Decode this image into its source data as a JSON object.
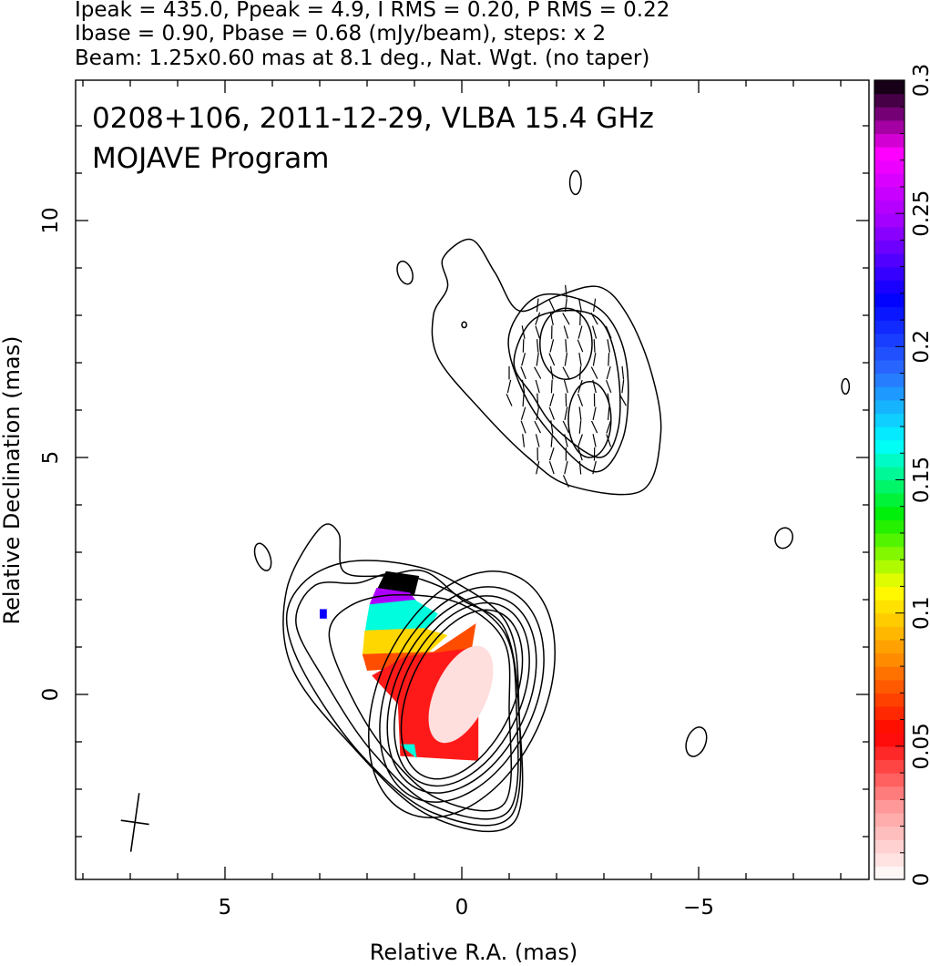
{
  "header": {
    "line1": "Ipeak = 435.0, Ppeak = 4.9, I RMS = 0.20, P RMS = 0.22",
    "line2": "Ibase = 0.90, Pbase = 0.68 (mJy/beam), steps: x 2",
    "line3": "Beam: 1.25x0.60 mas at 8.1 deg., Nat. Wgt. (no taper)"
  },
  "plot": {
    "title1": "0208+106, 2011-12-29, VLBA 15.4 GHz",
    "title2": "MOJAVE Program",
    "xlabel": "Relative R.A. (mas)",
    "ylabel": "Relative Declination (mas)"
  },
  "chart_data": {
    "type": "heatmap",
    "source": "0208+106",
    "date": "2011-12-29",
    "instrument": "VLBA 15.4 GHz",
    "xlim": [
      8.0,
      -8.9
    ],
    "ylim": [
      -3.9,
      13.1
    ],
    "x_ticks": [
      5,
      0,
      -5
    ],
    "x_tick_labels": [
      "5",
      "0",
      "−5"
    ],
    "y_ticks": [
      0,
      5,
      10
    ],
    "y_tick_labels": [
      "0",
      "5",
      "10"
    ],
    "grid": false,
    "colorbar": {
      "range": [
        0,
        0.3
      ],
      "ticks": [
        0,
        0.05,
        0.1,
        0.15,
        0.2,
        0.25,
        0.3
      ],
      "tick_labels": [
        "0",
        "0.05",
        "0.1",
        "0.15",
        "0.2",
        "0.25",
        "0.3"
      ],
      "colors": [
        "#ffffff",
        "#ff9a9a",
        "#ff0000",
        "#ff8800",
        "#ffff00",
        "#00ee00",
        "#00ffff",
        "#2b6bff",
        "#0000ff",
        "#9b00ff",
        "#ff00ff",
        "#000000"
      ]
    },
    "contours": [
      {
        "name": "core",
        "center": [
          0.0,
          0.0
        ],
        "semi_axes": [
          [
            1.1,
            1.9
          ],
          [
            1.25,
            2.05
          ],
          [
            1.4,
            2.2
          ],
          [
            1.55,
            2.4
          ],
          [
            1.75,
            2.75
          ]
        ],
        "pa_deg": 25
      },
      {
        "name": "core-outer-1",
        "points": [
          [
            -0.9,
            -2.3
          ],
          [
            0.5,
            -2.2
          ],
          [
            1.6,
            -1.2
          ],
          [
            2.4,
            0.1
          ],
          [
            2.8,
            1.3
          ],
          [
            2.3,
            1.9
          ],
          [
            1.3,
            2.1
          ],
          [
            0.0,
            1.9
          ],
          [
            -0.9,
            1.1
          ],
          [
            -1.0,
            -0.3
          ]
        ]
      },
      {
        "name": "core-outer-2",
        "points": [
          [
            -1.0,
            -2.45
          ],
          [
            0.6,
            -2.35
          ],
          [
            1.9,
            -1.2
          ],
          [
            2.9,
            0.3
          ],
          [
            3.5,
            1.5
          ],
          [
            3.1,
            2.3
          ],
          [
            2.2,
            2.35
          ],
          [
            1.4,
            2.55
          ],
          [
            0.2,
            2.15
          ],
          [
            -0.9,
            1.3
          ],
          [
            -1.15,
            -0.2
          ]
        ]
      },
      {
        "name": "core-outer-3",
        "points": [
          [
            -1.05,
            -2.55
          ],
          [
            0.6,
            -2.5
          ],
          [
            2.1,
            -1.3
          ],
          [
            3.3,
            0.4
          ],
          [
            3.7,
            1.6
          ],
          [
            3.3,
            2.4
          ],
          [
            2.4,
            2.8
          ],
          [
            1.2,
            2.75
          ],
          [
            0.2,
            2.4
          ],
          [
            -0.95,
            1.5
          ],
          [
            -1.2,
            -0.1
          ]
        ]
      },
      {
        "name": "core-outermost",
        "points": [
          [
            -1.1,
            -2.7
          ],
          [
            0.7,
            -2.55
          ],
          [
            2.4,
            -1.0
          ],
          [
            3.6,
            0.6
          ],
          [
            3.7,
            2.2
          ],
          [
            3.0,
            3.5
          ],
          [
            2.6,
            3.4
          ],
          [
            2.5,
            2.6
          ],
          [
            1.7,
            2.5
          ],
          [
            0.8,
            2.6
          ],
          [
            0.0,
            2.0
          ],
          [
            -0.9,
            1.4
          ],
          [
            -1.2,
            -0.3
          ]
        ]
      },
      {
        "name": "jet-outer",
        "points": [
          [
            -2.3,
            4.4
          ],
          [
            -3.8,
            4.3
          ],
          [
            -4.2,
            5.5
          ],
          [
            -4.0,
            6.8
          ],
          [
            -3.5,
            8.0
          ],
          [
            -2.9,
            8.6
          ],
          [
            -2.0,
            8.4
          ],
          [
            -1.2,
            8.1
          ],
          [
            -0.7,
            8.9
          ],
          [
            -0.2,
            9.6
          ],
          [
            0.4,
            9.2
          ],
          [
            0.3,
            8.6
          ],
          [
            0.6,
            8.0
          ],
          [
            0.5,
            7.1
          ],
          [
            -0.4,
            6.0
          ],
          [
            -1.4,
            5.0
          ]
        ]
      },
      {
        "name": "jet-mid",
        "points": [
          [
            -2.8,
            4.7
          ],
          [
            -3.4,
            5.4
          ],
          [
            -3.5,
            6.8
          ],
          [
            -3.2,
            7.8
          ],
          [
            -2.6,
            8.3
          ],
          [
            -1.6,
            8.4
          ],
          [
            -1.0,
            7.6
          ],
          [
            -1.2,
            6.6
          ],
          [
            -1.8,
            5.6
          ]
        ]
      },
      {
        "name": "jet-inner",
        "points": [
          [
            -2.9,
            5.0
          ],
          [
            -3.3,
            5.6
          ],
          [
            -3.3,
            6.8
          ],
          [
            -3.0,
            7.8
          ],
          [
            -2.4,
            8.1
          ],
          [
            -1.5,
            7.9
          ],
          [
            -1.1,
            7.0
          ],
          [
            -1.5,
            6.3
          ],
          [
            -2.0,
            5.6
          ]
        ]
      },
      {
        "name": "jet-blob-upper",
        "center": [
          -2.2,
          7.4
        ],
        "semi_axes": [
          [
            0.55,
            0.75
          ]
        ],
        "pa_deg": 0
      },
      {
        "name": "jet-blob-lower",
        "center": [
          -2.7,
          5.8
        ],
        "semi_axes": [
          [
            0.45,
            0.8
          ]
        ],
        "pa_deg": 0
      },
      {
        "name": "island-1",
        "center": [
          -2.4,
          10.8
        ],
        "semi_axes": [
          [
            0.12,
            0.25
          ]
        ],
        "pa_deg": 0
      },
      {
        "name": "island-2",
        "center": [
          1.2,
          8.9
        ],
        "semi_axes": [
          [
            0.15,
            0.25
          ]
        ],
        "pa_deg": -20
      },
      {
        "name": "island-3",
        "center": [
          4.2,
          2.9
        ],
        "semi_axes": [
          [
            0.15,
            0.3
          ]
        ],
        "pa_deg": -20
      },
      {
        "name": "island-4",
        "center": [
          -8.1,
          6.5
        ],
        "semi_axes": [
          [
            0.08,
            0.16
          ]
        ],
        "pa_deg": 0
      },
      {
        "name": "island-5",
        "center": [
          -6.8,
          3.3
        ],
        "semi_axes": [
          [
            0.18,
            0.22
          ]
        ],
        "pa_deg": 20
      },
      {
        "name": "island-6",
        "center": [
          -4.95,
          -1.0
        ],
        "semi_axes": [
          [
            0.2,
            0.32
          ]
        ],
        "pa_deg": 20
      },
      {
        "name": "island-7",
        "center": [
          -0.05,
          7.8
        ],
        "semi_axes": [
          [
            0.05,
            0.06
          ]
        ],
        "pa_deg": 0
      }
    ],
    "fractional_polarization_patches": [
      {
        "value": 0.3,
        "points": [
          [
            1.8,
            2.2
          ],
          [
            1.6,
            2.6
          ],
          [
            0.9,
            2.5
          ],
          [
            1.0,
            2.1
          ]
        ]
      },
      {
        "value": 0.25,
        "points": [
          [
            1.95,
            1.9
          ],
          [
            1.8,
            2.25
          ],
          [
            1.1,
            2.15
          ],
          [
            0.9,
            1.9
          ]
        ]
      },
      {
        "value": 0.16,
        "points": [
          [
            2.05,
            1.3
          ],
          [
            1.95,
            1.9
          ],
          [
            1.0,
            2.0
          ],
          [
            0.5,
            1.7
          ],
          [
            0.8,
            1.3
          ]
        ]
      },
      {
        "value": 0.1,
        "points": [
          [
            2.1,
            0.8
          ],
          [
            2.05,
            1.35
          ],
          [
            0.8,
            1.4
          ],
          [
            0.3,
            1.25
          ],
          [
            0.8,
            0.8
          ]
        ]
      },
      {
        "value": 0.07,
        "points": [
          [
            2.0,
            0.5
          ],
          [
            2.1,
            0.85
          ],
          [
            0.6,
            0.9
          ],
          [
            -0.3,
            1.5
          ],
          [
            -0.2,
            0.9
          ],
          [
            0.5,
            0.6
          ]
        ]
      },
      {
        "value": 0.05,
        "points": [
          [
            1.9,
            0.4
          ],
          [
            1.2,
            0.8
          ],
          [
            -0.35,
            1.0
          ],
          [
            -0.35,
            -1.4
          ],
          [
            1.3,
            -1.3
          ],
          [
            1.35,
            -0.2
          ]
        ]
      },
      {
        "value": 0.16,
        "points": [
          [
            1.3,
            -1.05
          ],
          [
            1.2,
            -1.15
          ],
          [
            0.95,
            -1.35
          ],
          [
            1.0,
            -1.05
          ]
        ]
      },
      {
        "value": 0.22,
        "points": [
          [
            3.0,
            1.6
          ],
          [
            2.85,
            1.6
          ],
          [
            2.85,
            1.8
          ],
          [
            3.0,
            1.8
          ]
        ]
      }
    ],
    "polarization_vectors_region": {
      "center": [
        -2.2,
        6.5
      ],
      "half_size": [
        1.2,
        2.0
      ]
    },
    "beam": {
      "major_mas": 1.25,
      "minor_mas": 0.6,
      "pa_deg": 8.1,
      "center": [
        6.9,
        -2.7
      ]
    }
  }
}
